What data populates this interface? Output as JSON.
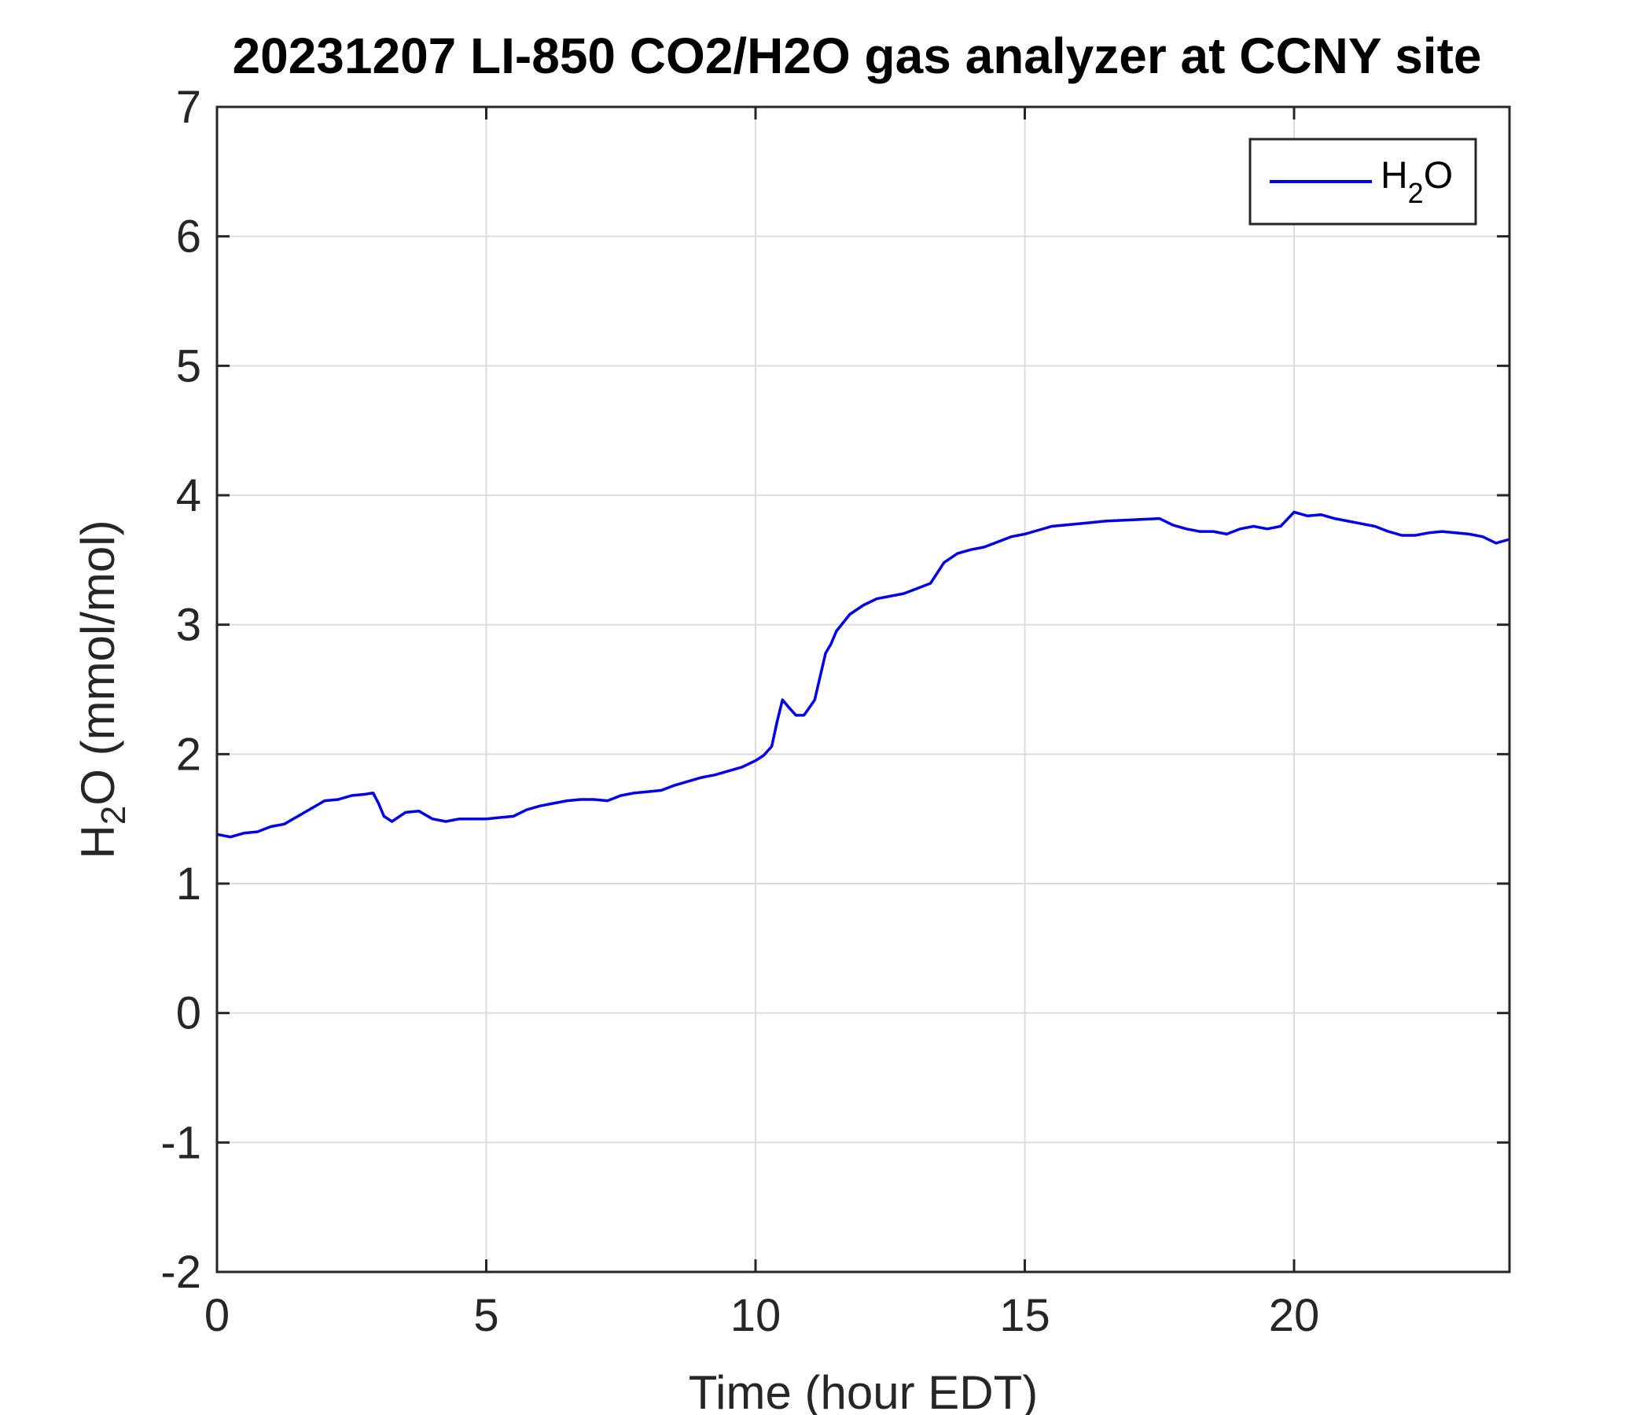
{
  "chart_data": {
    "type": "line",
    "title": "20231207 LI-850 CO2/H2O gas analyzer at CCNY site",
    "xlabel": "Time (hour EDT)",
    "ylabel": {
      "main": "H",
      "sub": "2",
      "tail": "O (mmol/mol)"
    },
    "xlim": [
      0,
      24
    ],
    "ylim": [
      -2,
      7
    ],
    "xticks": [
      0,
      5,
      10,
      15,
      20
    ],
    "yticks": [
      -2,
      -1,
      0,
      1,
      2,
      3,
      4,
      5,
      6,
      7
    ],
    "grid": true,
    "legend": {
      "position": "top-right",
      "label_main": "H",
      "label_sub": "2",
      "label_tail": "O"
    },
    "colors": {
      "series": "#0000ee",
      "axis": "#262626",
      "grid": "#dcdcdc"
    },
    "series": [
      {
        "name": "H2O",
        "x": [
          0,
          0.25,
          0.5,
          0.75,
          1.0,
          1.25,
          1.5,
          1.75,
          2.0,
          2.25,
          2.5,
          2.75,
          2.9,
          3.0,
          3.1,
          3.25,
          3.5,
          3.75,
          4.0,
          4.25,
          4.5,
          4.75,
          5.0,
          5.25,
          5.5,
          5.75,
          6.0,
          6.25,
          6.5,
          6.75,
          7.0,
          7.25,
          7.5,
          7.75,
          8.0,
          8.25,
          8.5,
          8.75,
          9.0,
          9.25,
          9.5,
          9.75,
          10.0,
          10.15,
          10.3,
          10.4,
          10.5,
          10.6,
          10.75,
          10.9,
          11.0,
          11.1,
          11.2,
          11.3,
          11.4,
          11.5,
          11.75,
          12.0,
          12.25,
          12.5,
          12.75,
          13.0,
          13.25,
          13.5,
          13.75,
          14.0,
          14.25,
          14.5,
          14.75,
          15.0,
          15.25,
          15.5,
          15.75,
          16.0,
          16.5,
          17.0,
          17.5,
          17.75,
          18.0,
          18.25,
          18.5,
          18.75,
          19.0,
          19.25,
          19.5,
          19.75,
          20.0,
          20.25,
          20.5,
          20.75,
          21.0,
          21.25,
          21.5,
          21.75,
          22.0,
          22.25,
          22.5,
          22.75,
          23.0,
          23.25,
          23.5,
          23.75,
          24.0
        ],
        "y": [
          1.38,
          1.36,
          1.39,
          1.4,
          1.44,
          1.46,
          1.52,
          1.58,
          1.64,
          1.65,
          1.68,
          1.69,
          1.7,
          1.62,
          1.52,
          1.48,
          1.55,
          1.56,
          1.5,
          1.48,
          1.5,
          1.5,
          1.5,
          1.51,
          1.52,
          1.57,
          1.6,
          1.62,
          1.64,
          1.65,
          1.65,
          1.64,
          1.68,
          1.7,
          1.71,
          1.72,
          1.76,
          1.79,
          1.82,
          1.84,
          1.87,
          1.9,
          1.95,
          1.99,
          2.06,
          2.25,
          2.42,
          2.37,
          2.3,
          2.3,
          2.36,
          2.42,
          2.6,
          2.78,
          2.85,
          2.95,
          3.08,
          3.15,
          3.2,
          3.22,
          3.24,
          3.28,
          3.32,
          3.48,
          3.55,
          3.58,
          3.6,
          3.64,
          3.68,
          3.7,
          3.73,
          3.76,
          3.77,
          3.78,
          3.8,
          3.81,
          3.82,
          3.77,
          3.74,
          3.72,
          3.72,
          3.7,
          3.74,
          3.76,
          3.74,
          3.76,
          3.87,
          3.84,
          3.85,
          3.82,
          3.8,
          3.78,
          3.76,
          3.72,
          3.69,
          3.69,
          3.71,
          3.72,
          3.71,
          3.7,
          3.68,
          3.63,
          3.66
        ]
      }
    ]
  }
}
